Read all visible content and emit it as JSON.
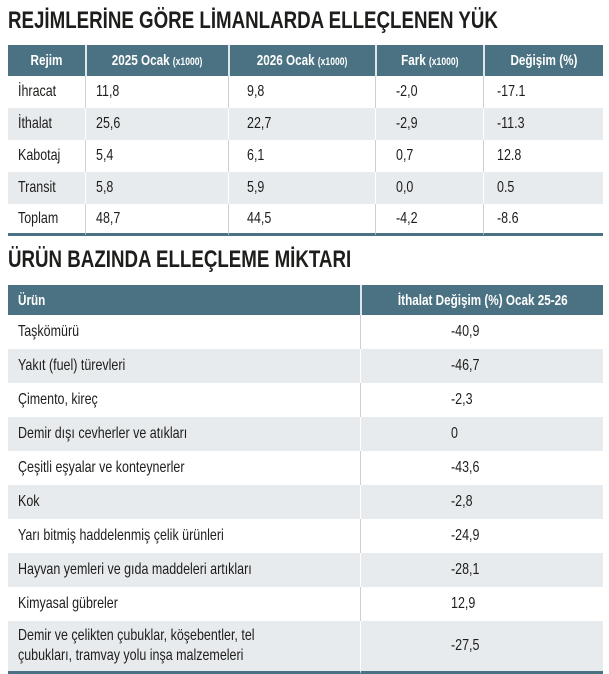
{
  "colors": {
    "header_bg": "#4b7282",
    "alt_row_bg": "#e7ebed",
    "text": "#1d1d1b",
    "divider": "#c9d1d4"
  },
  "table1": {
    "title": "REJİMLERİNE GÖRE LİMANLARDA ELLEÇLENEN YÜK",
    "columns": [
      {
        "label": "Rejim",
        "suffix": ""
      },
      {
        "label": "2025 Ocak",
        "suffix": "(x1000)"
      },
      {
        "label": "2026 Ocak",
        "suffix": "(x1000)"
      },
      {
        "label": "Fark",
        "suffix": "(x1000)"
      },
      {
        "label": "Değişim (%)",
        "suffix": ""
      }
    ],
    "rows": [
      {
        "rejim": "İhracat",
        "ocak2025": "11,8",
        "ocak2026": "9,8",
        "fark": "-2,0",
        "degisim": "-17.1"
      },
      {
        "rejim": "İthalat",
        "ocak2025": "25,6",
        "ocak2026": "22,7",
        "fark": "-2,9",
        "degisim": "-11.3"
      },
      {
        "rejim": "Kabotaj",
        "ocak2025": "5,4",
        "ocak2026": "6,1",
        "fark": "0,7",
        "degisim": "12.8"
      },
      {
        "rejim": "Transit",
        "ocak2025": "5,8",
        "ocak2026": "5,9",
        "fark": "0,0",
        "degisim": "0.5"
      },
      {
        "rejim": "Toplam",
        "ocak2025": "48,7",
        "ocak2026": "44,5",
        "fark": "-4,2",
        "degisim": "-8.6"
      }
    ]
  },
  "table2": {
    "title": "ÜRÜN BAZINDA ELLEÇLEME MİKTARI",
    "columns": [
      {
        "label": "Ürün"
      },
      {
        "label": "İthalat Değişim (%) Ocak 25-26"
      }
    ],
    "rows": [
      {
        "urun": "Taşkömürü",
        "degisim": "-40,9"
      },
      {
        "urun": "Yakıt (fuel) türevleri",
        "degisim": "-46,7"
      },
      {
        "urun": "Çimento, kireç",
        "degisim": "-2,3"
      },
      {
        "urun": "Demir dışı cevherler ve atıkları",
        "degisim": "0"
      },
      {
        "urun": "Çeşitli eşyalar ve konteynerler",
        "degisim": "-43,6"
      },
      {
        "urun": "Kok",
        "degisim": "-2,8"
      },
      {
        "urun": "Yarı bitmiş haddelenmiş çelik ürünleri",
        "degisim": "-24,9"
      },
      {
        "urun": "Hayvan yemleri ve gıda maddeleri artıkları",
        "degisim": "-28,1"
      },
      {
        "urun": "Kimyasal gübreler",
        "degisim": "12,9"
      },
      {
        "urun": "Demir ve çelikten çubuklar, köşebentler, tel çubukları, tramvay yolu inşa malzemeleri",
        "degisim": "-27,5"
      }
    ]
  }
}
